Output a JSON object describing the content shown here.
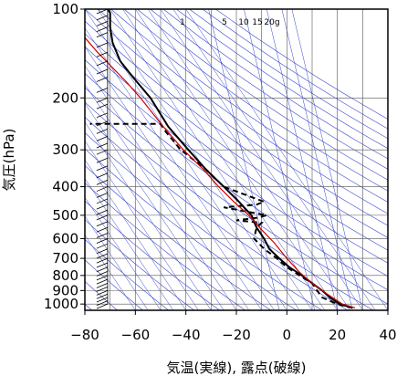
{
  "chart_data": {
    "type": "line",
    "xlabel": "気温(実線), 露点(破線)",
    "ylabel": "気圧(hPa)",
    "xlim": [
      -80,
      40
    ],
    "ylim": [
      1050,
      100
    ],
    "y_scale": "log",
    "x_ticks": [
      -80,
      -60,
      -40,
      -20,
      0,
      20,
      40
    ],
    "y_ticks": [
      100,
      200,
      300,
      400,
      500,
      600,
      700,
      800,
      900,
      1000
    ],
    "grid": true,
    "mixing_ratio_labels": [
      "1",
      "5",
      "10",
      "15",
      "20g"
    ],
    "series": [
      {
        "style": "solid",
        "color": "#000000",
        "points": [
          [
            26,
            1030
          ],
          [
            21,
            1000
          ],
          [
            17,
            950
          ],
          [
            14,
            900
          ],
          [
            10,
            850
          ],
          [
            6,
            800
          ],
          [
            1,
            750
          ],
          [
            -3,
            700
          ],
          [
            -7,
            650
          ],
          [
            -9,
            600
          ],
          [
            -12,
            550
          ],
          [
            -14,
            500
          ],
          [
            -19,
            450
          ],
          [
            -25,
            400
          ],
          [
            -32,
            350
          ],
          [
            -39,
            300
          ],
          [
            -47,
            250
          ],
          [
            -54,
            200
          ],
          [
            -61,
            170
          ],
          [
            -66,
            150
          ],
          [
            -69,
            130
          ],
          [
            -70,
            115
          ],
          [
            -70,
            103
          ],
          [
            -71,
            100
          ]
        ]
      },
      {
        "style": "dashed",
        "color": "#000000",
        "points": [
          [
            26,
            1030
          ],
          [
            20,
            1000
          ],
          [
            14,
            950
          ],
          [
            12,
            900
          ],
          [
            10,
            850
          ],
          [
            5,
            800
          ],
          [
            0,
            750
          ],
          [
            -4,
            700
          ],
          [
            -9,
            650
          ],
          [
            -13,
            600
          ],
          [
            -12,
            550
          ],
          [
            -10,
            530
          ],
          [
            -20,
            520
          ],
          [
            -12,
            510
          ],
          [
            -8,
            500
          ],
          [
            -25,
            470
          ],
          [
            -12,
            460
          ],
          [
            -9,
            450
          ],
          [
            -25,
            400
          ],
          [
            -32,
            350
          ],
          [
            -42,
            300
          ],
          [
            -48,
            260
          ],
          [
            -50,
            245
          ],
          [
            -78,
            245
          ]
        ]
      },
      {
        "style": "solid",
        "color": "#cc0000",
        "points": [
          [
            27,
            1030
          ],
          [
            22,
            1000
          ],
          [
            16,
            925
          ],
          [
            10,
            850
          ],
          [
            5,
            780
          ],
          [
            0,
            700
          ],
          [
            -5,
            620
          ],
          [
            -10,
            560
          ],
          [
            -15,
            500
          ],
          [
            -21,
            450
          ],
          [
            -27,
            400
          ],
          [
            -33,
            350
          ],
          [
            -41,
            300
          ],
          [
            -49,
            250
          ],
          [
            -58,
            200
          ],
          [
            -64,
            175
          ],
          [
            -70,
            155
          ],
          [
            -75,
            140
          ],
          [
            -80,
            125
          ]
        ]
      }
    ],
    "wind_barbs_pressure_levels": [
      1000,
      975,
      950,
      925,
      900,
      875,
      850,
      825,
      800,
      775,
      750,
      725,
      700,
      675,
      650,
      625,
      600,
      575,
      550,
      525,
      500,
      480,
      460,
      440,
      420,
      400,
      380,
      360,
      340,
      320,
      300,
      285,
      270,
      255,
      240,
      225,
      210,
      200,
      185,
      170,
      160,
      150,
      140,
      130,
      120,
      115,
      110,
      105,
      100
    ]
  }
}
